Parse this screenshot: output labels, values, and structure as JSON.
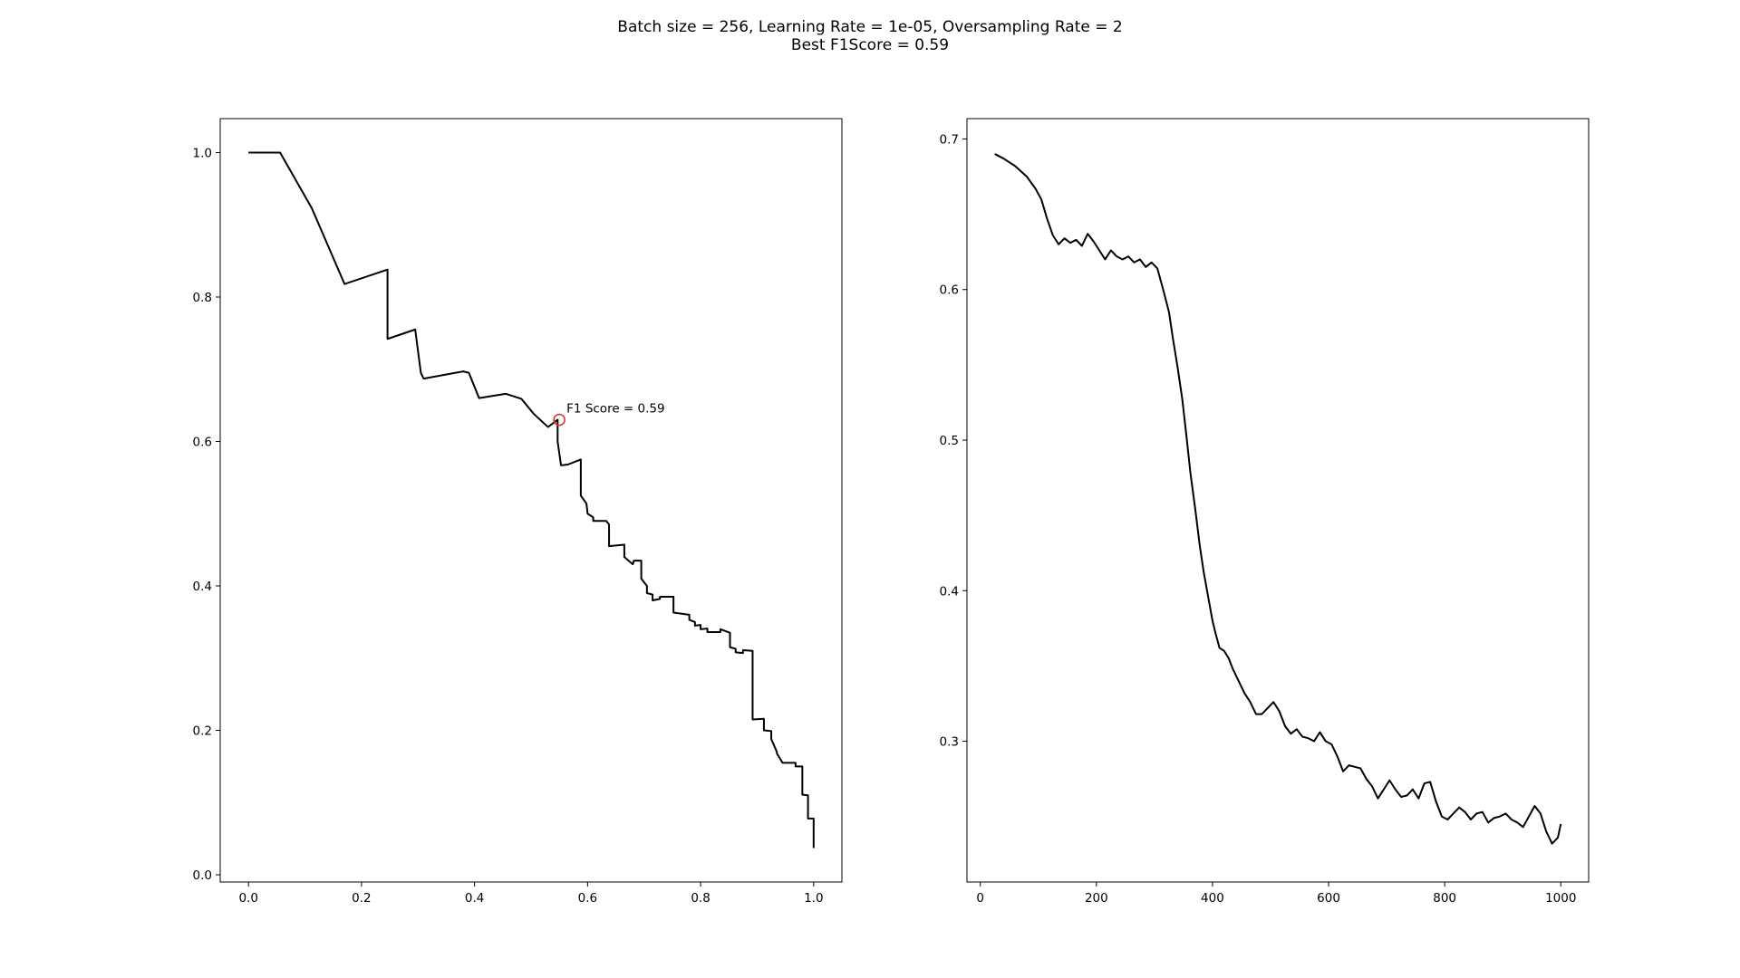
{
  "figure": {
    "title_line1": "Batch size = 256, Learning Rate = 1e-05, Oversampling Rate = 2",
    "title_line2": "Best F1Score = 0.59"
  },
  "chart_data": [
    {
      "type": "line",
      "title": "",
      "xlabel": "",
      "ylabel": "",
      "xlim": [
        -0.05,
        1.05
      ],
      "ylim": [
        -0.01,
        1.047
      ],
      "xticks": [
        0.0,
        0.2,
        0.4,
        0.6,
        0.8,
        1.0
      ],
      "xtick_labels": [
        "0.0",
        "0.2",
        "0.4",
        "0.6",
        "0.8",
        "1.0"
      ],
      "yticks": [
        0.0,
        0.2,
        0.4,
        0.6,
        0.8,
        1.0
      ],
      "ytick_labels": [
        "0.0",
        "0.2",
        "0.4",
        "0.6",
        "0.8",
        "1.0"
      ],
      "line_color": "#000000",
      "grid": false,
      "series": [
        {
          "x": [
            0.0,
            0.056,
            0.112,
            0.17,
            0.246,
            0.246,
            0.295,
            0.305,
            0.31,
            0.38,
            0.39,
            0.408,
            0.455,
            0.483,
            0.505,
            0.53,
            0.547,
            0.547,
            0.553,
            0.565,
            0.588,
            0.588,
            0.598,
            0.6,
            0.61,
            0.61,
            0.633,
            0.638,
            0.638,
            0.665,
            0.665,
            0.68,
            0.682,
            0.695,
            0.695,
            0.705,
            0.705,
            0.715,
            0.715,
            0.728,
            0.728,
            0.752,
            0.752,
            0.78,
            0.78,
            0.79,
            0.79,
            0.8,
            0.8,
            0.812,
            0.812,
            0.835,
            0.835,
            0.852,
            0.852,
            0.862,
            0.862,
            0.875,
            0.875,
            0.892,
            0.892,
            0.912,
            0.912,
            0.925,
            0.925,
            0.935,
            0.935,
            0.945,
            0.945,
            0.968,
            0.968,
            0.98,
            0.98,
            0.99,
            0.99,
            1.0,
            1.0
          ],
          "y": [
            1.0,
            1.0,
            0.923,
            0.818,
            0.838,
            0.742,
            0.755,
            0.695,
            0.687,
            0.697,
            0.695,
            0.66,
            0.666,
            0.659,
            0.638,
            0.62,
            0.63,
            0.6,
            0.567,
            0.568,
            0.575,
            0.525,
            0.514,
            0.5,
            0.495,
            0.49,
            0.49,
            0.485,
            0.455,
            0.457,
            0.44,
            0.43,
            0.435,
            0.435,
            0.41,
            0.4,
            0.39,
            0.388,
            0.38,
            0.382,
            0.385,
            0.385,
            0.363,
            0.36,
            0.353,
            0.35,
            0.345,
            0.346,
            0.34,
            0.341,
            0.336,
            0.336,
            0.34,
            0.335,
            0.315,
            0.313,
            0.308,
            0.307,
            0.311,
            0.31,
            0.215,
            0.216,
            0.2,
            0.199,
            0.188,
            0.17,
            0.168,
            0.155,
            0.155,
            0.155,
            0.15,
            0.15,
            0.111,
            0.11,
            0.078,
            0.078,
            0.037
          ]
        }
      ],
      "annotation": {
        "x": 0.55,
        "y": 0.63,
        "text": "F1 Score = 0.59",
        "marker_color": "#e03030"
      }
    },
    {
      "type": "line",
      "title": "",
      "xlabel": "",
      "ylabel": "",
      "xlim": [
        -23,
        1048
      ],
      "ylim": [
        0.2065,
        0.7135
      ],
      "xticks": [
        0,
        200,
        400,
        600,
        800,
        1000
      ],
      "xtick_labels": [
        "0",
        "200",
        "400",
        "600",
        "800",
        "1000"
      ],
      "yticks": [
        0.3,
        0.4,
        0.5,
        0.6,
        0.7
      ],
      "ytick_labels": [
        "0.3",
        "0.4",
        "0.5",
        "0.6",
        "0.7"
      ],
      "line_color": "#000000",
      "grid": false,
      "series": [
        {
          "x": [
            25,
            40,
            60,
            80,
            95,
            105,
            115,
            125,
            135,
            145,
            155,
            165,
            175,
            185,
            195,
            205,
            215,
            225,
            235,
            245,
            255,
            265,
            275,
            285,
            295,
            305,
            315,
            325,
            332,
            340,
            348,
            355,
            362,
            370,
            378,
            385,
            392,
            400,
            405,
            412,
            420,
            428,
            435,
            445,
            455,
            465,
            475,
            485,
            495,
            505,
            515,
            525,
            535,
            545,
            555,
            565,
            575,
            585,
            595,
            605,
            615,
            625,
            635,
            645,
            655,
            665,
            675,
            685,
            695,
            705,
            715,
            725,
            735,
            745,
            755,
            765,
            775,
            785,
            795,
            805,
            815,
            825,
            835,
            845,
            855,
            865,
            875,
            885,
            895,
            905,
            915,
            925,
            935,
            945,
            955,
            965,
            975,
            985,
            995,
            1000
          ],
          "y": [
            0.69,
            0.687,
            0.682,
            0.675,
            0.667,
            0.66,
            0.647,
            0.636,
            0.63,
            0.634,
            0.631,
            0.633,
            0.629,
            0.637,
            0.632,
            0.626,
            0.62,
            0.626,
            0.622,
            0.62,
            0.622,
            0.618,
            0.62,
            0.615,
            0.618,
            0.614,
            0.6,
            0.585,
            0.567,
            0.548,
            0.527,
            0.503,
            0.478,
            0.455,
            0.43,
            0.412,
            0.397,
            0.38,
            0.372,
            0.362,
            0.36,
            0.355,
            0.348,
            0.34,
            0.332,
            0.326,
            0.318,
            0.318,
            0.322,
            0.326,
            0.32,
            0.31,
            0.305,
            0.308,
            0.303,
            0.302,
            0.3,
            0.306,
            0.3,
            0.298,
            0.29,
            0.28,
            0.284,
            0.283,
            0.282,
            0.275,
            0.27,
            0.262,
            0.268,
            0.274,
            0.268,
            0.263,
            0.264,
            0.268,
            0.262,
            0.272,
            0.273,
            0.26,
            0.25,
            0.248,
            0.252,
            0.256,
            0.253,
            0.248,
            0.252,
            0.253,
            0.246,
            0.249,
            0.25,
            0.252,
            0.248,
            0.246,
            0.243,
            0.25,
            0.257,
            0.252,
            0.24,
            0.232,
            0.236,
            0.245
          ]
        }
      ]
    }
  ]
}
